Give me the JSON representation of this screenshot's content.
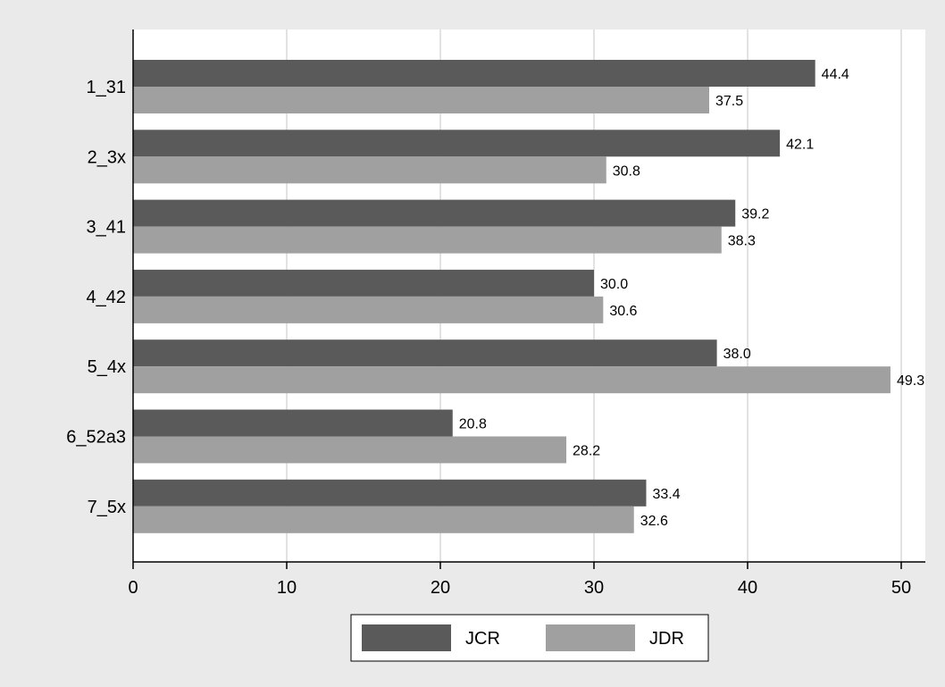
{
  "chart_data": {
    "type": "bar",
    "orientation": "horizontal",
    "categories": [
      "1_31",
      "2_3x",
      "3_41",
      "4_42",
      "5_4x",
      "6_52a3",
      "7_5x"
    ],
    "series": [
      {
        "name": "JCR",
        "values": [
          44.4,
          42.1,
          39.2,
          30.0,
          38.0,
          20.8,
          33.4
        ],
        "labels": [
          "44.4",
          "42.1",
          "39.2",
          "30.0",
          "38.0",
          "20.8",
          "33.4"
        ]
      },
      {
        "name": "JDR",
        "values": [
          37.5,
          30.8,
          38.3,
          30.6,
          49.3,
          28.2,
          32.6
        ],
        "labels": [
          "37.5",
          "30.8",
          "38.3",
          "30.6",
          "49.3",
          "28.2",
          "32.6"
        ]
      }
    ],
    "xlim": [
      0,
      50
    ],
    "x_ticks": [
      "0",
      "10",
      "20",
      "30",
      "40",
      "50"
    ],
    "grid": true,
    "legend_position": "bottom",
    "colors": {
      "JCR": "#5a5a5a",
      "JDR": "#a0a0a0",
      "outer_background": "#eaeaea",
      "plot_background": "#ffffff",
      "grid": "#e2e2e2"
    }
  }
}
